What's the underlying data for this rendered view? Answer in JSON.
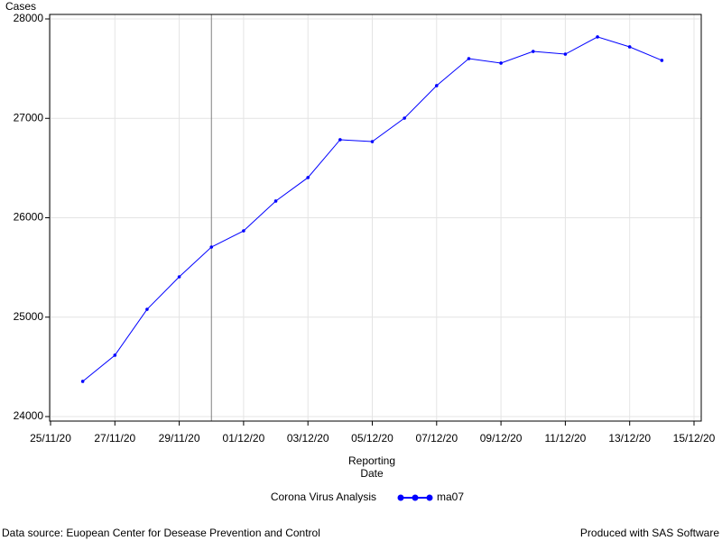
{
  "chart_data": {
    "type": "line",
    "y_label": "Cases",
    "x_label": [
      "Reporting",
      "Date"
    ],
    "x": [
      "26/11/20",
      "27/11/20",
      "28/11/20",
      "29/11/20",
      "30/11/20",
      "01/12/20",
      "02/12/20",
      "03/12/20",
      "04/12/20",
      "05/12/20",
      "06/12/20",
      "07/12/20",
      "08/12/20",
      "09/12/20",
      "10/12/20",
      "11/12/20",
      "12/12/20",
      "13/12/20",
      "14/12/20"
    ],
    "series": [
      {
        "name": "ma07",
        "color": "#0000ff",
        "values": [
          24354,
          24617,
          25079,
          25406,
          25705,
          25868,
          26168,
          26404,
          26785,
          26766,
          27002,
          27329,
          27601,
          27556,
          27673,
          27646,
          27819,
          27719,
          27583
        ]
      }
    ],
    "xlim": [
      "25/11/20",
      "15/12/20"
    ],
    "xticks": [
      "25/11/20",
      "27/11/20",
      "29/11/20",
      "01/12/20",
      "03/12/20",
      "05/12/20",
      "07/12/20",
      "09/12/20",
      "11/12/20",
      "13/12/20",
      "15/12/20"
    ],
    "ylim": [
      24000,
      28000
    ],
    "yticks": [
      24000,
      25000,
      26000,
      27000,
      28000
    ],
    "grid": true,
    "reference_line": "30/11/20",
    "legend_title": "Corona Virus Analysis",
    "legend_position": "bottom",
    "footnote_left": "Data source: Euopean Center for Desease Prevention and Control",
    "footnote_right": "Produced with SAS Software"
  }
}
